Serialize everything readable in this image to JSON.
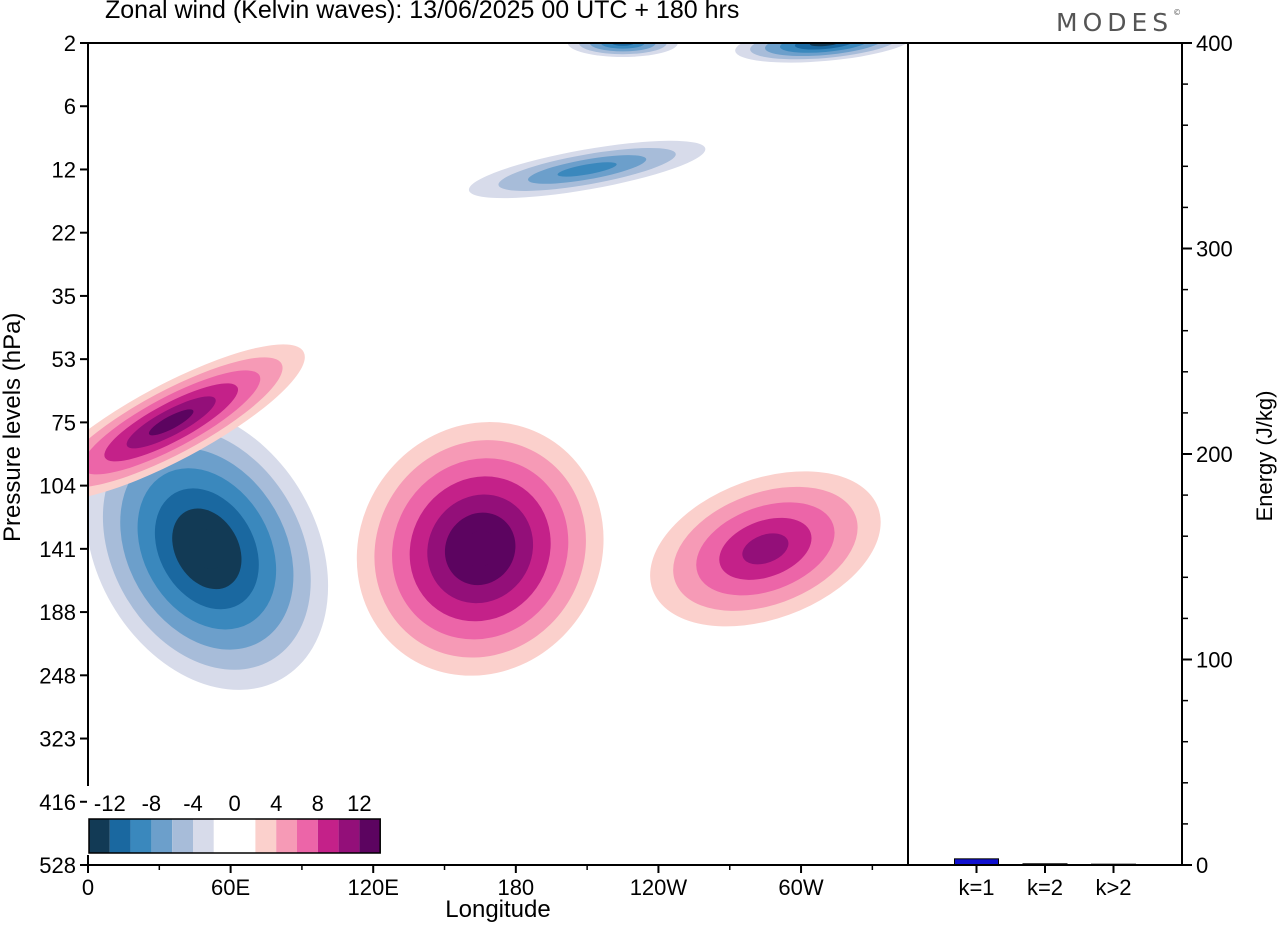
{
  "title": "Zonal wind (Kelvin waves):  13/06/2025  00 UTC  + 180 hrs",
  "brand": {
    "name": "MODES",
    "mark": "©"
  },
  "colors": {
    "scale": [
      "#123a55",
      "#1a68a0",
      "#3a88bd",
      "#6c9fcb",
      "#a7bcd9",
      "#d7dbea",
      "#ffffff",
      "#ffffff",
      "#fbd0cc",
      "#f69ab6",
      "#ec65a8",
      "#c42189",
      "#930f79",
      "#5c0460"
    ],
    "bar": "#1010d0"
  },
  "chart_data": [
    {
      "type": "heatmap",
      "title": "Zonal wind (Kelvin waves):  13/06/2025  00 UTC  + 180 hrs",
      "xlabel": "Longitude",
      "ylabel": "Pressure levels (hPa)",
      "x_ticks": [
        "0",
        "60E",
        "120E",
        "180",
        "120W",
        "60W"
      ],
      "x_range_deg": [
        0,
        345
      ],
      "y_levels": [
        "2",
        "6",
        "12",
        "22",
        "35",
        "53",
        "75",
        "104",
        "141",
        "188",
        "248",
        "323",
        "416",
        "528"
      ],
      "legend_labels": [
        "-12",
        "-8",
        "-4",
        "0",
        "4",
        "8",
        "12"
      ],
      "contour_interval": 2,
      "features": [
        {
          "sign": "negative",
          "center_lon": 50,
          "center_level": "141",
          "peak": -14
        },
        {
          "sign": "positive",
          "center_lon": 165,
          "center_level": "141",
          "peak": 14
        },
        {
          "sign": "positive",
          "center_lon": 35,
          "center_level": "75",
          "peak": 12
        },
        {
          "sign": "positive",
          "center_lon": 285,
          "center_level": "141",
          "peak": 10
        },
        {
          "sign": "negative",
          "center_lon": 310,
          "center_level": "2",
          "peak": -12
        },
        {
          "sign": "negative",
          "center_lon": 225,
          "center_level": "2",
          "peak": -10
        },
        {
          "sign": "negative",
          "center_lon": 210,
          "center_level": "12",
          "peak": -8
        }
      ]
    },
    {
      "type": "bar",
      "categories": [
        "k=1",
        "k=2",
        "k>2"
      ],
      "values": [
        3,
        0.6,
        0.4
      ],
      "ylabel": "Energy (J/kg)",
      "ylim": [
        0,
        400
      ],
      "y_ticks": [
        "0",
        "100",
        "200",
        "300",
        "400"
      ]
    }
  ]
}
